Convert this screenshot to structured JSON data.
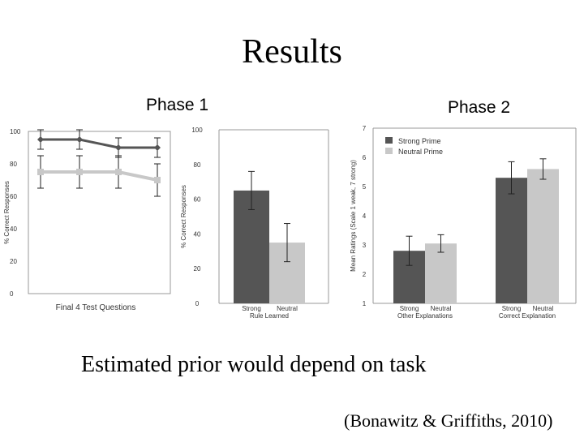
{
  "slide": {
    "title": "Results",
    "phase1_label": "Phase 1",
    "phase2_label": "Phase 2",
    "subtitle": "Estimated prior would depend on task",
    "citation": "(Bonawitz & Griffiths, 2010)"
  },
  "colors": {
    "dark": "#555555",
    "light": "#c8c8c8",
    "axis": "#999999"
  },
  "chart_data": [
    {
      "id": "phase1-line",
      "type": "line",
      "title": "",
      "xlabel": "Final 4 Test Questions",
      "ylabel": "% Correct Responses",
      "ylim": [
        0,
        100
      ],
      "yticks": [
        "0",
        "20",
        "40",
        "60",
        "80",
        "100"
      ],
      "x": [
        1,
        2,
        3,
        4
      ],
      "series": [
        {
          "name": "dark",
          "values": [
            95,
            95,
            90,
            90
          ],
          "error": [
            6,
            6,
            6,
            6
          ]
        },
        {
          "name": "light",
          "values": [
            75,
            75,
            75,
            70
          ],
          "error": [
            10,
            10,
            10,
            10
          ]
        }
      ]
    },
    {
      "id": "phase1-bar",
      "type": "bar",
      "xlabel": "Rule Learned",
      "ylabel": "% Correct Responses",
      "ylim": [
        0,
        100
      ],
      "yticks": [
        "0",
        "20",
        "40",
        "60",
        "80",
        "100"
      ],
      "categories": [
        "Strong",
        "Neutral"
      ],
      "values": [
        65,
        35
      ],
      "error": [
        11,
        11
      ]
    },
    {
      "id": "phase2-bar",
      "type": "bar",
      "ylabel": "Mean Ratings (Scale 1 weak, 7 strong)",
      "ylim": [
        1,
        7
      ],
      "yticks": [
        "1",
        "2",
        "3",
        "4",
        "5",
        "6",
        "7"
      ],
      "legend": [
        "Strong Prime",
        "Neutral Prime"
      ],
      "legend_position": "top-left",
      "groups": [
        {
          "labels": [
            "Strong",
            "Neutral"
          ],
          "caption": "Other Explanations"
        },
        {
          "labels": [
            "Strong",
            "Neutral"
          ],
          "caption": "Correct Explanation"
        }
      ],
      "series": [
        {
          "name": "Strong Prime",
          "values": [
            2.8,
            5.3
          ],
          "error": [
            0.5,
            0.55
          ]
        },
        {
          "name": "Neutral Prime",
          "values": [
            3.05,
            5.6
          ],
          "error": [
            0.3,
            0.35
          ]
        }
      ]
    }
  ]
}
